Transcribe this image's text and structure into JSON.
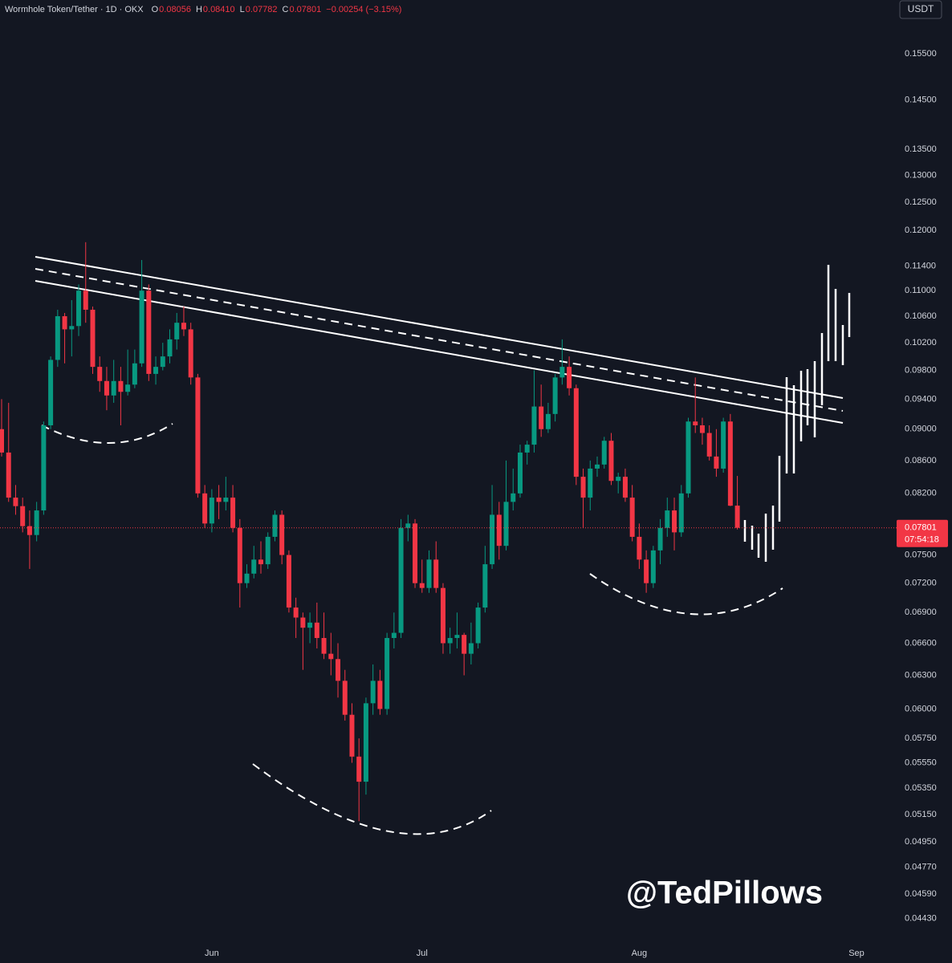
{
  "chart_data": {
    "type": "candlestick",
    "header": {
      "title": "Wormhole Token/Tether · 1D · OKX",
      "ohlc": [
        {
          "key": "O",
          "value": "0.08056"
        },
        {
          "key": "H",
          "value": "0.08410"
        },
        {
          "key": "L",
          "value": "0.07782"
        },
        {
          "key": "C",
          "value": "0.07801"
        }
      ],
      "change": "−0.00254 (−3.15%)"
    },
    "currency": "USDT",
    "watermark": "@TedPillows",
    "log_scale": true,
    "grid": false,
    "up_color": "#089981",
    "down_color": "#f23645",
    "ylim": [
      0.043,
      0.1676
    ],
    "yticks": [
      {
        "value": 0.155,
        "label": "0.15500"
      },
      {
        "value": 0.145,
        "label": "0.14500"
      },
      {
        "value": 0.135,
        "label": "0.13500"
      },
      {
        "value": 0.13,
        "label": "0.13000"
      },
      {
        "value": 0.125,
        "label": "0.12500"
      },
      {
        "value": 0.12,
        "label": "0.12000"
      },
      {
        "value": 0.114,
        "label": "0.11400"
      },
      {
        "value": 0.11,
        "label": "0.11000"
      },
      {
        "value": 0.106,
        "label": "0.10600"
      },
      {
        "value": 0.102,
        "label": "0.10200"
      },
      {
        "value": 0.098,
        "label": "0.09800"
      },
      {
        "value": 0.094,
        "label": "0.09400"
      },
      {
        "value": 0.09,
        "label": "0.09000"
      },
      {
        "value": 0.086,
        "label": "0.08600"
      },
      {
        "value": 0.082,
        "label": "0.08200"
      },
      {
        "value": 0.075,
        "label": "0.07500"
      },
      {
        "value": 0.072,
        "label": "0.07200"
      },
      {
        "value": 0.069,
        "label": "0.06900"
      },
      {
        "value": 0.066,
        "label": "0.06600"
      },
      {
        "value": 0.063,
        "label": "0.06300"
      },
      {
        "value": 0.06,
        "label": "0.06000"
      },
      {
        "value": 0.0575,
        "label": "0.05750"
      },
      {
        "value": 0.0555,
        "label": "0.05550"
      },
      {
        "value": 0.0535,
        "label": "0.05350"
      },
      {
        "value": 0.0515,
        "label": "0.05150"
      },
      {
        "value": 0.0495,
        "label": "0.04950"
      },
      {
        "value": 0.0477,
        "label": "0.04770"
      },
      {
        "value": 0.0459,
        "label": "0.04590"
      },
      {
        "value": 0.0443,
        "label": "0.04430"
      }
    ],
    "last_price": 0.07801,
    "countdown": "07:54:18",
    "categories": [
      null,
      null,
      null,
      null,
      null,
      null,
      null,
      null,
      null,
      null,
      null,
      null,
      null,
      null,
      null,
      null,
      null,
      null,
      null,
      null,
      null,
      null,
      null,
      null,
      null,
      null,
      null,
      null,
      null,
      null,
      "Jun",
      null,
      null,
      null,
      null,
      null,
      null,
      null,
      null,
      null,
      null,
      null,
      null,
      null,
      null,
      null,
      null,
      null,
      null,
      null,
      null,
      null,
      null,
      null,
      null,
      null,
      null,
      null,
      null,
      null,
      "Jul",
      null,
      null,
      null,
      null,
      null,
      null,
      null,
      null,
      null,
      null,
      null,
      null,
      null,
      null,
      null,
      null,
      null,
      null,
      null,
      null,
      null,
      null,
      null,
      null,
      null,
      null,
      null,
      null,
      null,
      null,
      "Aug",
      null,
      null,
      null,
      null,
      null,
      null,
      null,
      null,
      null,
      null,
      null,
      null,
      null,
      null,
      null,
      null,
      null,
      null,
      null,
      null,
      null,
      null,
      null,
      null,
      null,
      null,
      null,
      null,
      null,
      null,
      "Sep"
    ],
    "open": [
      0.09,
      0.087,
      0.0815,
      0.0805,
      0.0782,
      0.0772,
      0.08,
      0.0905,
      0.0995,
      0.106,
      0.104,
      0.1045,
      0.11,
      0.107,
      0.0985,
      0.0965,
      0.0945,
      0.0965,
      0.095,
      0.096,
      0.099,
      0.11,
      0.0975,
      0.0985,
      0.1,
      0.1025,
      0.105,
      0.104,
      0.097,
      0.082,
      0.0785,
      0.0815,
      0.081,
      0.0815,
      0.078,
      0.072,
      0.073,
      0.0745,
      0.074,
      0.077,
      0.0795,
      0.075,
      0.0695,
      0.0685,
      0.0675,
      0.068,
      0.0665,
      0.065,
      0.0645,
      0.0625,
      0.0595,
      0.056,
      0.054,
      0.0605,
      0.0625,
      0.06,
      0.0665,
      0.067,
      0.078,
      0.0785,
      0.072,
      0.0715,
      0.0745,
      0.0715,
      0.066,
      0.0665,
      0.0668,
      0.065,
      0.066,
      0.0695,
      0.074,
      0.0795,
      0.076,
      0.081,
      0.082,
      0.087,
      0.088,
      0.093,
      0.09,
      0.092,
      0.097,
      0.0985,
      0.0955,
      0.084,
      0.0815,
      0.085,
      0.0855,
      0.0885,
      0.0835,
      0.084,
      0.0815,
      0.077,
      0.0745,
      0.072,
      0.0755,
      0.078,
      0.08,
      0.0775,
      0.082,
      0.091,
      0.0905,
      0.0895,
      0.0865,
      0.085,
      0.091,
      0.08056,
      null,
      null,
      null,
      null,
      null,
      null,
      null,
      null,
      null,
      null,
      null,
      null,
      null,
      null,
      null,
      null,
      null
    ],
    "high": [
      0.094,
      0.0935,
      0.083,
      0.0815,
      0.08,
      0.081,
      0.091,
      0.1,
      0.107,
      0.1065,
      0.1085,
      0.111,
      0.118,
      0.1075,
      0.1,
      0.0985,
      0.0995,
      0.0985,
      0.101,
      0.101,
      0.115,
      0.111,
      0.1,
      0.102,
      0.104,
      0.1065,
      0.1075,
      0.105,
      0.0975,
      0.083,
      0.0825,
      0.083,
      0.084,
      0.083,
      0.079,
      0.074,
      0.076,
      0.0765,
      0.0775,
      0.08,
      0.08,
      0.0755,
      0.0705,
      0.069,
      0.069,
      0.07,
      0.069,
      0.067,
      0.066,
      0.0635,
      0.0605,
      0.0575,
      0.061,
      0.064,
      0.0635,
      0.067,
      0.069,
      0.079,
      0.0795,
      0.079,
      0.0745,
      0.0755,
      0.0765,
      0.072,
      0.0675,
      0.069,
      0.067,
      0.068,
      0.07,
      0.076,
      0.083,
      0.081,
      0.086,
      0.085,
      0.088,
      0.0885,
      0.098,
      0.096,
      0.0935,
      0.0975,
      0.1025,
      0.1,
      0.096,
      0.085,
      0.086,
      0.0865,
      0.089,
      0.0895,
      0.0845,
      0.085,
      0.083,
      0.0785,
      0.0755,
      0.076,
      0.079,
      0.0815,
      0.0815,
      0.083,
      0.0915,
      0.097,
      0.0915,
      0.0905,
      0.09,
      0.0915,
      0.092,
      0.0841,
      null,
      null,
      null,
      null,
      null,
      null,
      null,
      null,
      null,
      null,
      null,
      null,
      null,
      null,
      null,
      null,
      null
    ],
    "low": [
      0.0865,
      0.081,
      0.0795,
      0.0775,
      0.0735,
      0.0765,
      0.0795,
      0.09,
      0.0985,
      0.099,
      0.1,
      0.103,
      0.105,
      0.0975,
      0.095,
      0.0925,
      0.0935,
      0.0905,
      0.0945,
      0.0955,
      0.0985,
      0.0965,
      0.096,
      0.098,
      0.099,
      0.101,
      0.103,
      0.096,
      0.0815,
      0.078,
      0.0775,
      0.079,
      0.08,
      0.0775,
      0.0695,
      0.0715,
      0.0725,
      0.073,
      0.0735,
      0.0765,
      0.074,
      0.069,
      0.0665,
      0.0635,
      0.066,
      0.0655,
      0.0645,
      0.063,
      0.061,
      0.059,
      0.0555,
      0.051,
      0.053,
      0.0595,
      0.0595,
      0.0595,
      0.0655,
      0.0665,
      0.0765,
      0.0715,
      0.071,
      0.071,
      0.071,
      0.065,
      0.065,
      0.0655,
      0.063,
      0.064,
      0.0655,
      0.069,
      0.0735,
      0.0745,
      0.0755,
      0.08,
      0.0815,
      0.0855,
      0.087,
      0.089,
      0.0895,
      0.091,
      0.096,
      0.0945,
      0.083,
      0.078,
      0.08,
      0.084,
      0.085,
      0.083,
      0.082,
      0.081,
      0.0765,
      0.0735,
      0.071,
      0.0715,
      0.074,
      0.077,
      0.0755,
      0.077,
      0.0815,
      0.0895,
      0.088,
      0.086,
      0.084,
      0.0845,
      0.0805,
      0.07782,
      null,
      null,
      null,
      null,
      null,
      null,
      null,
      null,
      null,
      null,
      null,
      null,
      null,
      null,
      null,
      null,
      null
    ],
    "close": [
      0.087,
      0.0815,
      0.0805,
      0.0782,
      0.0772,
      0.08,
      0.0905,
      0.0995,
      0.106,
      0.104,
      0.1045,
      0.11,
      0.107,
      0.0985,
      0.0965,
      0.0945,
      0.0965,
      0.095,
      0.096,
      0.099,
      0.11,
      0.0975,
      0.0985,
      0.1,
      0.1025,
      0.105,
      0.104,
      0.097,
      0.082,
      0.0785,
      0.0815,
      0.081,
      0.0815,
      0.078,
      0.072,
      0.073,
      0.0745,
      0.074,
      0.077,
      0.0795,
      0.075,
      0.0695,
      0.0685,
      0.0675,
      0.068,
      0.0665,
      0.065,
      0.0645,
      0.0625,
      0.0595,
      0.056,
      0.054,
      0.0605,
      0.0625,
      0.06,
      0.0665,
      0.067,
      0.078,
      0.0785,
      0.072,
      0.0715,
      0.0745,
      0.0715,
      0.066,
      0.0665,
      0.0668,
      0.065,
      0.066,
      0.0695,
      0.074,
      0.0795,
      0.076,
      0.081,
      0.082,
      0.087,
      0.088,
      0.093,
      0.09,
      0.092,
      0.097,
      0.0985,
      0.0955,
      0.084,
      0.0815,
      0.085,
      0.0855,
      0.0885,
      0.0835,
      0.084,
      0.0815,
      0.077,
      0.0745,
      0.072,
      0.0755,
      0.078,
      0.08,
      0.0775,
      0.082,
      0.091,
      0.0905,
      0.0895,
      0.0865,
      0.085,
      0.091,
      0.08055,
      0.07801,
      null,
      null,
      null,
      null,
      null,
      null,
      null,
      null,
      null,
      null,
      null,
      null,
      null,
      null,
      null,
      null,
      null
    ]
  }
}
